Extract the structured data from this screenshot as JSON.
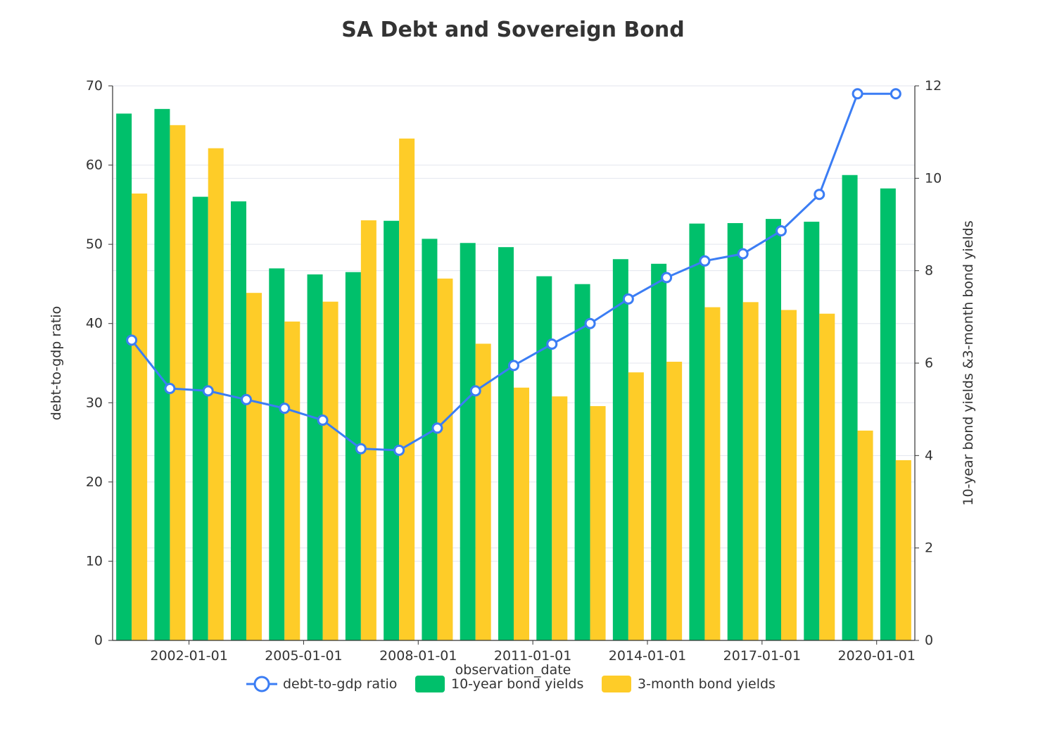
{
  "chart_data": {
    "type": "bar",
    "title": "SA Debt and Sovereign Bond",
    "xlabel": "observation_date",
    "ylabel_left": "debt-to-gdp ratio",
    "ylabel_right": "10-year bond yields &3-month bond yields",
    "categories": [
      "2001-01-01",
      "2002-01-01",
      "2003-01-01",
      "2004-01-01",
      "2005-01-01",
      "2006-01-01",
      "2007-01-01",
      "2008-01-01",
      "2009-01-01",
      "2010-01-01",
      "2011-01-01",
      "2012-01-01",
      "2013-01-01",
      "2014-01-01",
      "2015-01-01",
      "2016-01-01",
      "2017-01-01",
      "2018-01-01",
      "2019-01-01",
      "2020-01-01",
      "2021-01-01"
    ],
    "x_tick_labels": [
      "2002-01-01",
      "2005-01-01",
      "2008-01-01",
      "2011-01-01",
      "2014-01-01",
      "2017-01-01",
      "2020-01-01"
    ],
    "ylim_left": [
      0,
      70
    ],
    "yticks_left": [
      0,
      10,
      20,
      30,
      40,
      50,
      60,
      70
    ],
    "ylim_right": [
      0,
      12
    ],
    "yticks_right": [
      0,
      2,
      4,
      6,
      8,
      10,
      12
    ],
    "grid": true,
    "legend_position": "bottom",
    "series": [
      {
        "name": "debt-to-gdp ratio",
        "type": "line",
        "axis": "left",
        "color": "#3b7df4",
        "values": [
          37.9,
          31.8,
          31.5,
          30.4,
          29.3,
          27.8,
          24.2,
          24.0,
          26.8,
          31.5,
          34.7,
          37.4,
          40.0,
          43.1,
          45.8,
          47.9,
          48.8,
          51.7,
          56.3,
          69.0,
          69.0
        ]
      },
      {
        "name": "10-year bond yields",
        "type": "bar",
        "axis": "right",
        "color": "#00c06b",
        "values": [
          11.4,
          11.5,
          9.6,
          9.5,
          8.05,
          7.92,
          7.97,
          9.08,
          8.69,
          8.6,
          8.51,
          7.88,
          7.71,
          8.25,
          8.15,
          9.02,
          9.03,
          9.12,
          9.06,
          10.07,
          9.78
        ]
      },
      {
        "name": "3-month bond yields",
        "type": "bar",
        "axis": "right",
        "color": "#fecc28",
        "values": [
          9.67,
          11.15,
          10.65,
          7.52,
          6.9,
          7.33,
          9.09,
          10.86,
          7.83,
          6.42,
          5.47,
          5.28,
          5.07,
          5.8,
          6.03,
          7.21,
          7.32,
          7.15,
          7.07,
          4.54,
          3.9
        ]
      }
    ]
  }
}
